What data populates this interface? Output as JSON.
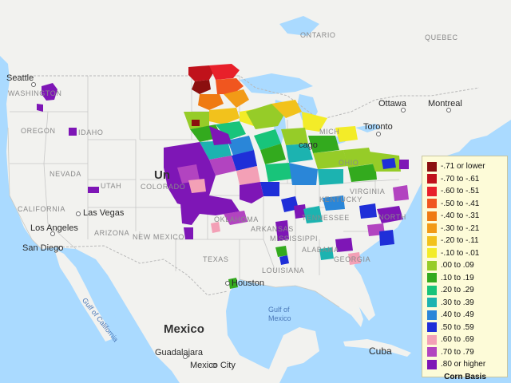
{
  "countries": {
    "mexico": "Mexico",
    "cuba": "Cuba"
  },
  "provinces": {
    "ontario": "ONTARIO",
    "quebec": "QUEBEC"
  },
  "states": {
    "washington": "WASHINGTON",
    "oregon": "OREGON",
    "idaho": "IDAHO",
    "nevada": "NEVADA",
    "california": "CALIFORNIA",
    "utah": "UTAH",
    "arizona": "ARIZONA",
    "colorado": "COLORADO",
    "new_mexico": "NEW MEXICO",
    "texas": "TEXAS",
    "oklahoma": "OKLAHOMA",
    "arkansas": "ARKANSAS",
    "mississippi": "MISSISSIPPI",
    "alabama": "ALABAMA",
    "louisiana": "LOUISIANA",
    "georgia": "GEORGIA",
    "tennessee": "TENNESSEE",
    "kentucky": "KENTUCKY",
    "virginia": "VIRGINIA",
    "north_carolina": "NORTH",
    "michigan": "MICH",
    "ohio": "OHIO"
  },
  "cities": {
    "seattle": "Seattle",
    "ottawa": "Ottawa",
    "montreal": "Montreal",
    "toronto": "Toronto",
    "las_vegas": "Las Vegas",
    "los_angeles": "Los Angeles",
    "san_diego": "San Diego",
    "houston": "Houston",
    "guadalajara": "Guadalajara",
    "mexico_city": "Mexico City",
    "chicago": "cago",
    "united_states": "Un"
  },
  "water": {
    "gulf_mexico_1": "Gulf of",
    "gulf_mexico_2": "Mexico",
    "gulf_california": "Gulf of California"
  },
  "legend": {
    "title": "Corn Basis",
    "items": [
      {
        "label": "-.71 or lower",
        "color": "#8b0f0f"
      },
      {
        "label": "-.70 to -.61",
        "color": "#c0121b"
      },
      {
        "label": "-.60 to -.51",
        "color": "#e8202a"
      },
      {
        "label": "-.50 to -.41",
        "color": "#f0561f"
      },
      {
        "label": "-.40 to -.31",
        "color": "#ef7a12"
      },
      {
        "label": "-.30 to -.21",
        "color": "#f29a16"
      },
      {
        "label": "-.20 to -.11",
        "color": "#f2c21c"
      },
      {
        "label": "-.10 to -.01",
        "color": "#f3ec28"
      },
      {
        "label": ".00 to .09",
        "color": "#96cc28"
      },
      {
        "label": ".10 to .19",
        "color": "#33aa1e"
      },
      {
        "label": ".20 to .29",
        "color": "#18c47a"
      },
      {
        "label": ".30 to .39",
        "color": "#1cb3b0"
      },
      {
        "label": ".40 to .49",
        "color": "#2a86d8"
      },
      {
        "label": ".50 to .59",
        "color": "#1f2fd8"
      },
      {
        "label": ".60 to .69",
        "color": "#f3a0b6"
      },
      {
        "label": ".70 to .79",
        "color": "#b244c0"
      },
      {
        "label": ".80 or higher",
        "color": "#7e16b6"
      }
    ]
  }
}
